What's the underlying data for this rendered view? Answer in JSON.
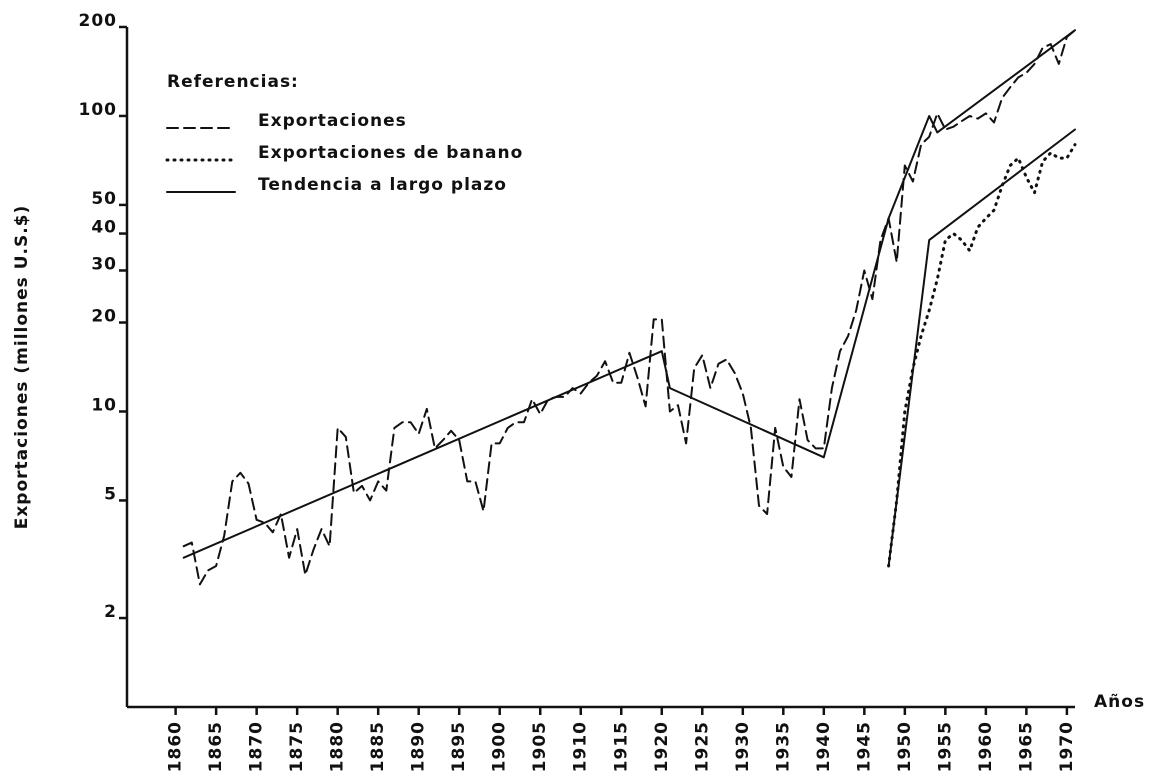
{
  "chart_data": {
    "type": "line",
    "y_label": "Exportaciones (millones U.S.$)",
    "x_label": "Años",
    "legend_title": "Referencias:",
    "legend": "upper-left",
    "log_y": true,
    "xlim": [
      1854,
      1971
    ],
    "ylim": [
      1,
      200
    ],
    "xticks": [
      1860,
      1865,
      1870,
      1875,
      1880,
      1885,
      1890,
      1895,
      1900,
      1905,
      1910,
      1915,
      1920,
      1925,
      1930,
      1935,
      1940,
      1945,
      1950,
      1955,
      1960,
      1965,
      1970
    ],
    "yticks": [
      2,
      5,
      10,
      20,
      30,
      40,
      50,
      100,
      200
    ],
    "series": [
      {
        "name": "Exportaciones",
        "color": "#111111",
        "style": "dashed",
        "x": [
          1861,
          1862,
          1863,
          1864,
          1865,
          1866,
          1867,
          1868,
          1869,
          1870,
          1871,
          1872,
          1873,
          1874,
          1875,
          1876,
          1877,
          1878,
          1879,
          1880,
          1881,
          1882,
          1883,
          1884,
          1885,
          1886,
          1887,
          1888,
          1889,
          1890,
          1891,
          1892,
          1893,
          1894,
          1895,
          1896,
          1897,
          1898,
          1899,
          1900,
          1901,
          1902,
          1903,
          1904,
          1905,
          1906,
          1907,
          1908,
          1909,
          1910,
          1911,
          1912,
          1913,
          1914,
          1915,
          1916,
          1917,
          1918,
          1919,
          1920,
          1921,
          1922,
          1923,
          1924,
          1925,
          1926,
          1927,
          1928,
          1929,
          1930,
          1931,
          1932,
          1933,
          1934,
          1935,
          1936,
          1937,
          1938,
          1939,
          1940,
          1941,
          1942,
          1943,
          1944,
          1945,
          1946,
          1947,
          1948,
          1949,
          1950,
          1951,
          1952,
          1953,
          1954,
          1955,
          1956,
          1957,
          1958,
          1959,
          1960,
          1961,
          1962,
          1963,
          1964,
          1965,
          1966,
          1967,
          1968,
          1969,
          1970,
          1971
        ],
        "values": [
          3.5,
          3.6,
          2.6,
          2.9,
          3.0,
          3.8,
          5.8,
          6.2,
          5.7,
          4.3,
          4.2,
          3.9,
          4.5,
          3.2,
          4.0,
          2.8,
          3.4,
          4.0,
          3.5,
          8.8,
          8.2,
          5.3,
          5.6,
          5.0,
          5.8,
          5.4,
          8.8,
          9.2,
          9.2,
          8.4,
          10.2,
          7.5,
          8.0,
          8.6,
          8.0,
          5.8,
          5.8,
          4.6,
          7.8,
          7.8,
          8.8,
          9.2,
          9.2,
          11.0,
          9.8,
          11.0,
          11.2,
          11.2,
          12.0,
          11.5,
          12.5,
          13.2,
          14.8,
          12.5,
          12.5,
          15.8,
          13.0,
          10.4,
          20.5,
          20.5,
          10.0,
          10.5,
          7.8,
          14.0,
          15.5,
          12.0,
          14.5,
          15.0,
          13.5,
          11.5,
          8.8,
          4.8,
          4.5,
          8.8,
          6.5,
          6.0,
          11.0,
          8.0,
          7.5,
          7.5,
          12.0,
          16.0,
          18.0,
          22.0,
          30.0,
          24.0,
          38.0,
          45.0,
          32.0,
          68.0,
          60.0,
          80.0,
          85.0,
          102.0,
          90.0,
          92.0,
          96.0,
          100.0,
          98.0,
          102.0,
          95.0,
          115.0,
          125.0,
          135.0,
          140.0,
          150.0,
          170.0,
          175.0,
          150.0,
          185.0,
          195.0
        ]
      },
      {
        "name": "Exportaciones de banano",
        "color": "#111111",
        "style": "dotted",
        "x": [
          1948,
          1949,
          1950,
          1951,
          1952,
          1953,
          1954,
          1955,
          1956,
          1957,
          1958,
          1959,
          1960,
          1961,
          1962,
          1963,
          1964,
          1965,
          1966,
          1967,
          1968,
          1969,
          1970,
          1971
        ],
        "values": [
          3.0,
          5.0,
          10.0,
          14.0,
          18.0,
          22.0,
          28.0,
          38.0,
          40.0,
          38.0,
          35.0,
          42.0,
          45.0,
          48.0,
          58.0,
          68.0,
          72.0,
          62.0,
          55.0,
          70.0,
          75.0,
          72.0,
          72.0,
          80.0
        ]
      },
      {
        "name": "Tendencia a largo plazo",
        "color": "#111111",
        "style": "solid",
        "x": [
          1861,
          1920,
          1921,
          1940,
          1948,
          1953,
          1954,
          1971,
          null,
          1948,
          1953,
          1971
        ],
        "values": [
          3.2,
          16.0,
          12.0,
          7.0,
          45.0,
          100.0,
          88.0,
          195.0,
          null,
          3.0,
          38.0,
          90.0
        ]
      }
    ]
  }
}
